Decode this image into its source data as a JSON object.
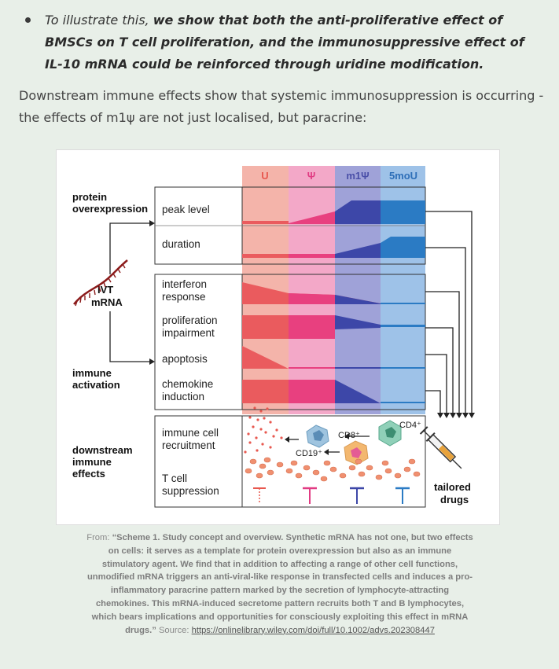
{
  "bullet": {
    "lead": "To illustrate this, ",
    "bold": "we show that both the anti-proliferative effect of BMSCs on T cell proliferation, and the immunosuppressive effect of IL-10 mRNA could be reinforced through uridine modification."
  },
  "paragraph": "Downstream immune effects show that systemic immunosuppression is occurring - the effects of m1ψ are not just localised, but paracrine:",
  "figure": {
    "columns": [
      "U",
      "Ψ",
      "m1Ψ",
      "5moU"
    ],
    "colors": {
      "u": "#f4b4aa",
      "psi": "#f3a8c8",
      "m1psi": "#9fa2d8",
      "moU": "#9ec2e8",
      "u_dark": "#ea5b5e",
      "psi_dark": "#e8407f",
      "m1psi_dark": "#3d47a8",
      "moU_dark": "#2b7bc4"
    },
    "left_labels": {
      "protein": "protein\noverexpression",
      "ivt": "IVT\nmRNA",
      "immune": "immune\nactivation",
      "downstream": "downstream\nimmune\neffects"
    },
    "row_labels": {
      "peak": "peak level",
      "duration": "duration",
      "interferon": "interferon\nresponse",
      "prolif": "proliferation\nimpairment",
      "apoptosis": "apoptosis",
      "chemokine": "chemokine\ninduction",
      "recruit": "immune cell\nrecruitment",
      "tcell": "T cell\nsuppression"
    },
    "cells": {
      "cd4": "CD4⁺",
      "cd8": "CD8⁺",
      "cd19": "CD19⁺"
    },
    "tailored": "tailored\ndrugs",
    "icons": [
      "mrna-strand-icon",
      "syringe-icon"
    ]
  },
  "caption": {
    "from": "From: ",
    "quote": "“Scheme 1. Study concept and overview. Synthetic mRNA has not one, but two effects on cells: it serves as a template for protein overexpression but also as an immune stimulatory agent. We find that in addition to affecting a range of other cell functions, unmodified mRNA triggers an anti-viral-like response in transfected cells and induces a pro-inflammatory paracrine pattern marked by the secretion of lymphocyte-attracting chemokines. This mRNA-induced secretome pattern recruits both T and B lymphocytes, which bears implications and opportunities for consciously exploiting this effect in mRNA drugs.”",
    "source_label": " Source: ",
    "link": "https://onlinelibrary.wiley.com/doi/full/10.1002/advs.202308447"
  }
}
